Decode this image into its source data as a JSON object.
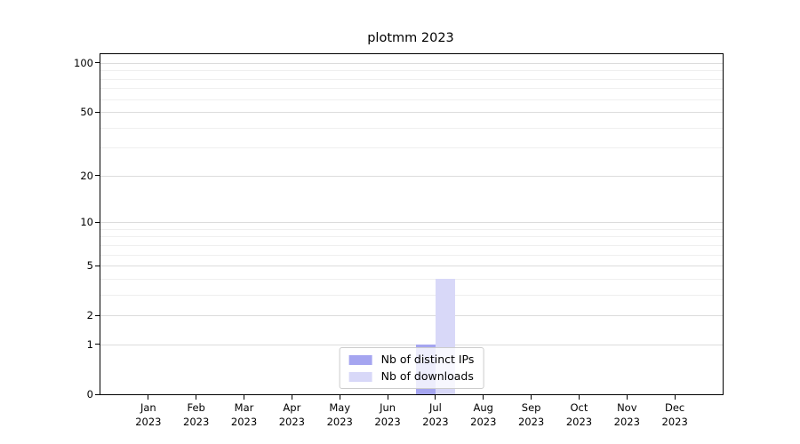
{
  "chart_data": {
    "type": "bar",
    "title": "plotmm 2023",
    "categories": [
      "Jan 2023",
      "Feb 2023",
      "Mar 2023",
      "Apr 2023",
      "May 2023",
      "Jun 2023",
      "Jul 2023",
      "Aug 2023",
      "Sep 2023",
      "Oct 2023",
      "Nov 2023",
      "Dec 2023"
    ],
    "series": [
      {
        "name": "Nb of distinct IPs",
        "color": "#a5a5f0",
        "values": [
          0,
          0,
          0,
          0,
          0,
          0,
          1,
          0,
          0,
          0,
          0,
          0
        ]
      },
      {
        "name": "Nb of downloads",
        "color": "#d8d8f8",
        "values": [
          0,
          0,
          0,
          0,
          0,
          0,
          4,
          0,
          0,
          0,
          0,
          0
        ]
      }
    ],
    "xlabel": "",
    "ylabel": "",
    "yscale": "log1p",
    "ylim": [
      0,
      113
    ],
    "yticks": [
      0,
      1,
      2,
      5,
      10,
      20,
      50,
      100
    ],
    "minor_gridlines": [
      3,
      4,
      6,
      7,
      8,
      9,
      30,
      40,
      60,
      70,
      80,
      90
    ],
    "grid": "horizontal",
    "legend_position": "lower center"
  }
}
